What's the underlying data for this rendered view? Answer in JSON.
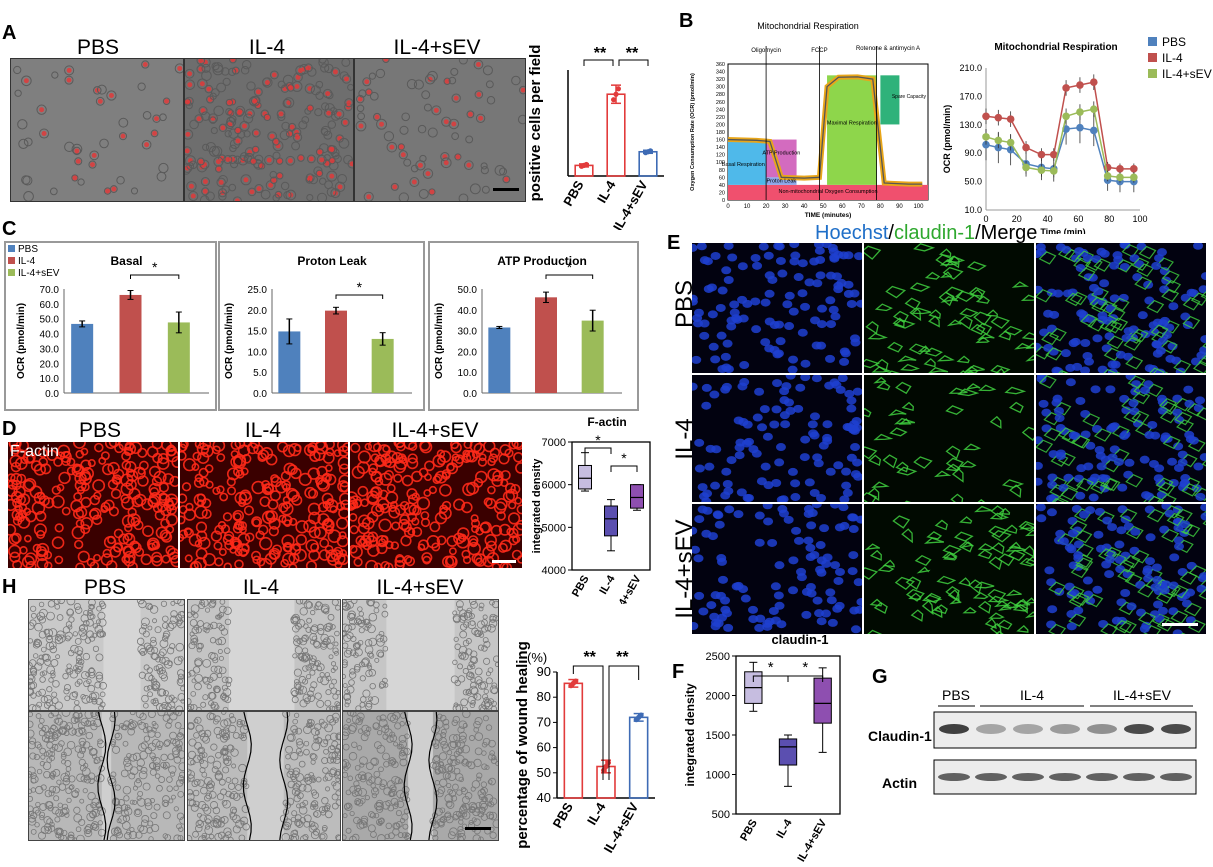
{
  "panels": {
    "A": {
      "label": "A",
      "conditions": [
        "PBS",
        "IL-4",
        "IL-4+sEV"
      ],
      "chart_data": {
        "type": "bar",
        "ylabel": "positive cells per field",
        "categories": [
          "PBS",
          "IL-4",
          "IL-4+sEV"
        ],
        "values": [
          35,
          270,
          80
        ],
        "errors": [
          5,
          30,
          5
        ],
        "ylim": [
          0,
          350
        ],
        "colors": [
          "#e23b3b",
          "#e23b3b",
          "#3e6bb5"
        ],
        "significance": [
          "**",
          "**"
        ]
      }
    },
    "B": {
      "label": "B",
      "schematic": {
        "title": "Mitochondrial Respiration",
        "ylabel": "Oxygen Consumption Rate (OCR) (pmol/min)",
        "xlabel": "TIME (minutes)",
        "injections": [
          "Oligomycin",
          "FCCP",
          "Rotenone & antimycin A"
        ],
        "regions": [
          "Basal Respiration",
          "ATP Production",
          "Proton Leak",
          "Maximal Respiration",
          "Spare Capacity",
          "Non-mitochondrial Oxygen Consumption"
        ],
        "yticks": [
          "0",
          "20",
          "40",
          "60",
          "80",
          "100",
          "120",
          "140",
          "160",
          "180",
          "200",
          "220",
          "240",
          "260",
          "280",
          "300",
          "320",
          "340",
          "360"
        ],
        "xticks": [
          "0",
          "10",
          "20",
          "30",
          "40",
          "50",
          "60",
          "70",
          "80",
          "90",
          "100"
        ]
      },
      "chart_data": {
        "type": "line",
        "title": "Mitochondrial Respiration",
        "xlabel": "Time (min)",
        "ylabel": "OCR (pmol/min)",
        "x": [
          0,
          8,
          16,
          26,
          36,
          44,
          52,
          61,
          70,
          79,
          87,
          96
        ],
        "ylim": [
          10,
          210
        ],
        "yticks": [
          "10.0",
          "50.0",
          "90.0",
          "130.0",
          "170.0",
          "210.0"
        ],
        "xticks": [
          "0",
          "20",
          "40",
          "60",
          "80",
          "100"
        ],
        "series": [
          {
            "name": "PBS",
            "color": "#4f81bd",
            "values": [
              102,
              98,
              95,
              75,
              70,
              68,
              124,
              126,
              122,
              52,
              50,
              50
            ]
          },
          {
            "name": "IL-4",
            "color": "#c0504d",
            "values": [
              142,
              140,
              138,
              98,
              88,
              88,
              182,
              186,
              190,
              70,
              68,
              68
            ]
          },
          {
            "name": "IL-4+sEV",
            "color": "#9bbb59",
            "values": [
              113,
              108,
              105,
              70,
              66,
              65,
              142,
              148,
              152,
              58,
              56,
              56
            ]
          }
        ],
        "errors": [
          22,
          22,
          22,
          18,
          18,
          18,
          22,
          22,
          22,
          15,
          15,
          15
        ]
      }
    },
    "C": {
      "label": "C",
      "legend": [
        "PBS",
        "IL-4",
        "IL-4+sEV"
      ],
      "ylabel": "OCR (pmol/min)",
      "charts": [
        {
          "title": "Basal",
          "values": [
            46.5,
            66,
            47.5
          ],
          "errors": [
            2,
            3,
            7
          ],
          "ylim": [
            0,
            70
          ],
          "yticks": [
            "0.0",
            "10.0",
            "20.0",
            "30.0",
            "40.0",
            "50.0",
            "60.0",
            "70.0"
          ],
          "sig": "*"
        },
        {
          "title": "Proton Leak",
          "values": [
            14.8,
            19.8,
            13
          ],
          "errors": [
            3,
            0.8,
            1.5
          ],
          "ylim": [
            0,
            25
          ],
          "yticks": [
            "0.0",
            "5.0",
            "10.0",
            "15.0",
            "20.0",
            "25.0"
          ],
          "sig": "*"
        },
        {
          "title": "ATP Production",
          "values": [
            31.5,
            46,
            34.8
          ],
          "errors": [
            0.5,
            2.5,
            5
          ],
          "ylim": [
            0,
            50
          ],
          "yticks": [
            "0.0",
            "10.0",
            "20.0",
            "30.0",
            "40.0",
            "50.0"
          ],
          "sig": "*"
        }
      ],
      "colors": [
        "#4f81bd",
        "#c0504d",
        "#9bbb59"
      ]
    },
    "D": {
      "label": "D",
      "conditions": [
        "PBS",
        "IL-4",
        "IL-4+sEV"
      ],
      "stain": "F-actin",
      "chart_data": {
        "type": "box",
        "title": "F-actin",
        "ylabel": "integrated density",
        "categories": [
          "PBS",
          "IL-4",
          "IL-4+sEV"
        ],
        "ylim": [
          4000,
          7000
        ],
        "yticks": [
          "4000",
          "5000",
          "6000",
          "7000"
        ],
        "boxes": [
          {
            "min": 5850,
            "q1": 5900,
            "med": 6150,
            "q3": 6450,
            "max": 6750,
            "color": "#c6bde0"
          },
          {
            "min": 4450,
            "q1": 4800,
            "med": 5200,
            "q3": 5500,
            "max": 5650,
            "color": "#5b4fb0"
          },
          {
            "min": 5400,
            "q1": 5450,
            "med": 5700,
            "q3": 6000,
            "max": 6000,
            "color": "#8e4fb0"
          }
        ],
        "significance": [
          "*",
          "*"
        ]
      }
    },
    "E": {
      "label": "E",
      "header_hoechst": "Hoechst",
      "header_claudin": "claudin-1",
      "header_merge": "/Merge",
      "slash": "/",
      "rows": [
        "PBS",
        "IL-4",
        "IL-4+sEV"
      ]
    },
    "F": {
      "label": "F",
      "chart_data": {
        "type": "box",
        "title": "claudin-1",
        "ylabel": "integrated density",
        "categories": [
          "PBS",
          "IL-4",
          "IL-4+sEV"
        ],
        "ylim": [
          500,
          2500
        ],
        "yticks": [
          "500",
          "1000",
          "1500",
          "2000",
          "2500"
        ],
        "boxes": [
          {
            "min": 1800,
            "q1": 1900,
            "med": 2100,
            "q3": 2300,
            "max": 2420,
            "color": "#c6bde0"
          },
          {
            "min": 850,
            "q1": 1120,
            "med": 1350,
            "q3": 1450,
            "max": 1500,
            "color": "#5b4fb0"
          },
          {
            "min": 1280,
            "q1": 1650,
            "med": 1900,
            "q3": 2220,
            "max": 2350,
            "color": "#8e4fb0"
          }
        ],
        "significance": [
          "*",
          "*"
        ]
      }
    },
    "G": {
      "label": "G",
      "groups": [
        "PBS",
        "IL-4",
        "IL-4+sEV"
      ],
      "bands": [
        "Claudin-1",
        "Actin"
      ]
    },
    "H": {
      "label": "H",
      "conditions": [
        "PBS",
        "IL-4",
        "IL-4+sEV"
      ],
      "chart_data": {
        "type": "bar",
        "ylabel": "percentage of wound healing",
        "unit": "(%)",
        "categories": [
          "PBS",
          "IL-4",
          "IL-4+sEV"
        ],
        "values": [
          85.5,
          52.5,
          72
        ],
        "errors": [
          1.5,
          2.5,
          1.5
        ],
        "ylim": [
          40,
          90
        ],
        "yticks": [
          "40",
          "50",
          "60",
          "70",
          "80",
          "90"
        ],
        "colors": [
          "#e23b3b",
          "#e23b3b",
          "#3e6bb5"
        ],
        "significance": [
          "**",
          "**"
        ]
      }
    }
  }
}
